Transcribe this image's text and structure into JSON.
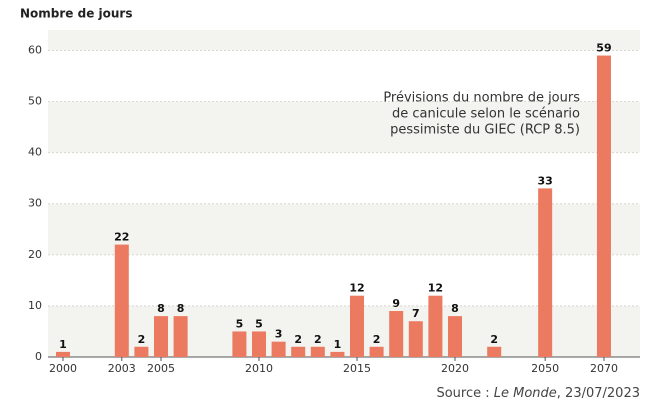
{
  "chart_data": {
    "type": "bar",
    "y_axis_title": "Nombre de jours",
    "annotation": [
      "Prévisions du nombre de jours",
      "de canicule selon le scénario",
      "pessimiste du GIEC (RCP 8.5)"
    ],
    "source": {
      "prefix": "Source : ",
      "publication": "Le Monde",
      "date": ", 23/07/2023"
    },
    "categories": [
      "2000",
      null,
      "2003",
      null,
      "2005",
      null,
      null,
      "2010",
      null,
      null,
      null,
      null,
      "2015",
      null,
      null,
      null,
      null,
      "2020",
      null,
      "2050",
      "2070"
    ],
    "values": [
      1,
      null,
      22,
      2,
      8,
      8,
      5,
      5,
      3,
      2,
      2,
      1,
      12,
      2,
      9,
      7,
      12,
      8,
      2,
      33,
      59
    ],
    "color": "#eb7a60",
    "ylim": [
      0,
      64
    ],
    "yticks": [
      0,
      10,
      20,
      30,
      40,
      50,
      60
    ],
    "grid": true
  }
}
